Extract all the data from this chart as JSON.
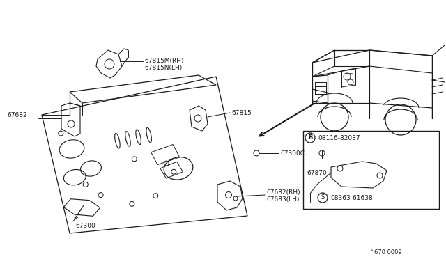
{
  "bg_color": "#ffffff",
  "line_color": "#1a1a1a",
  "text_color": "#1a1a1a",
  "fig_width": 6.4,
  "fig_height": 3.72,
  "dpi": 100,
  "footer_text": "^670 0009",
  "label_67300": "67300",
  "label_67682": "67682",
  "label_67815MN": "67815M(RH)\n67815N(LH)",
  "label_67815": "67815",
  "label_67300C": "67300C",
  "label_67682RH": "67682(RH)\n67683(LH)",
  "label_67870": "67870",
  "label_B": "B",
  "label_08116": "08116-82037",
  "label_S": "S",
  "label_08363": "08363-61638"
}
